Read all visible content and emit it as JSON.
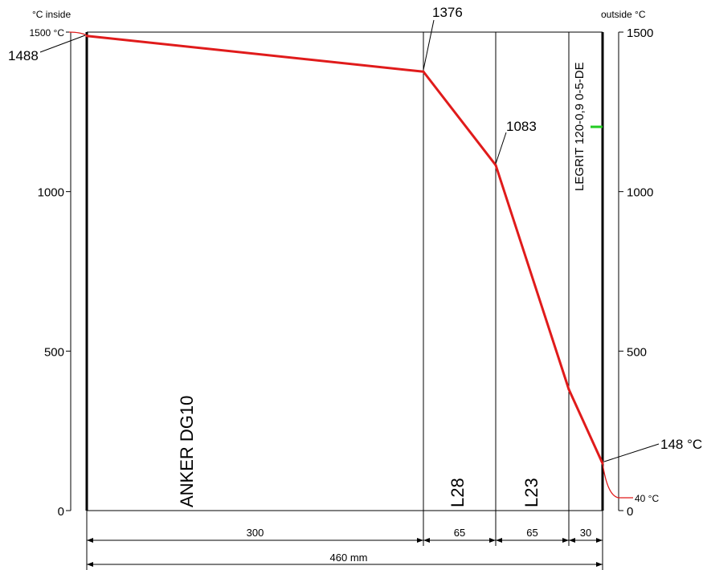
{
  "header": {
    "left_label": "°C  inside",
    "right_label": "outside  °C"
  },
  "chart_data": {
    "type": "line",
    "title": "",
    "xlabel": "",
    "ylabel": "°C",
    "ylim": [
      0,
      1500
    ],
    "x_unit": "mm",
    "x": [
      0,
      300,
      365,
      430,
      460
    ],
    "y": [
      1488,
      1376,
      1083,
      380,
      148
    ],
    "left_ticks": [
      "0",
      "500",
      "1000",
      "1500 °C"
    ],
    "right_ticks": [
      "0",
      "500",
      "1000",
      "1500"
    ],
    "layers": [
      {
        "name": "ANKER DG10",
        "thickness": 300,
        "dimension_label": "300"
      },
      {
        "name": "L28",
        "thickness": 65,
        "dimension_label": "65"
      },
      {
        "name": "L23",
        "thickness": 65,
        "dimension_label": "65"
      },
      {
        "name": "LEGRIT 120-0,9 0-5-DE",
        "thickness": 30,
        "dimension_label": "30"
      }
    ],
    "total_dimension_label": "460 mm",
    "callouts": {
      "inside_surface": "1488",
      "interface_1": "1376",
      "interface_2": "1083",
      "outside_surface": "148 °C",
      "ambient_inside": "1500 °C",
      "ambient_outside": "40 °C"
    },
    "colors": {
      "curve": "#e01b1b",
      "ambient_lines": "#e01b1b",
      "marker": "#22cc22",
      "lines": "#000000"
    }
  }
}
